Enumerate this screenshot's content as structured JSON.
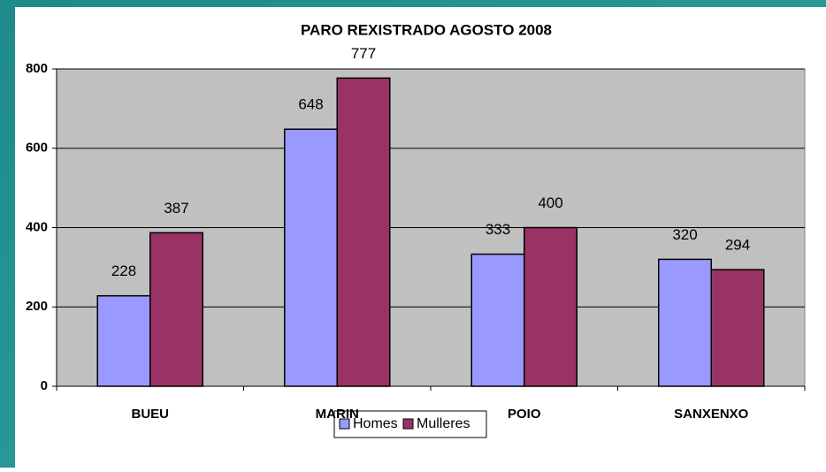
{
  "chart_data": {
    "type": "bar",
    "title": "PARO REXISTRADO AGOSTO 2008",
    "categories": [
      "BUEU",
      "MARIN",
      "POIO",
      "SANXENXO"
    ],
    "series": [
      {
        "name": "Homes",
        "color": "#9999ff",
        "values": [
          228,
          648,
          333,
          320
        ]
      },
      {
        "name": "Mulleres",
        "color": "#993366",
        "values": [
          387,
          777,
          400,
          294
        ]
      }
    ],
    "ylim": [
      0,
      800
    ],
    "yticks": [
      0,
      200,
      400,
      600,
      800
    ],
    "grid": true,
    "legend": "bottom"
  }
}
